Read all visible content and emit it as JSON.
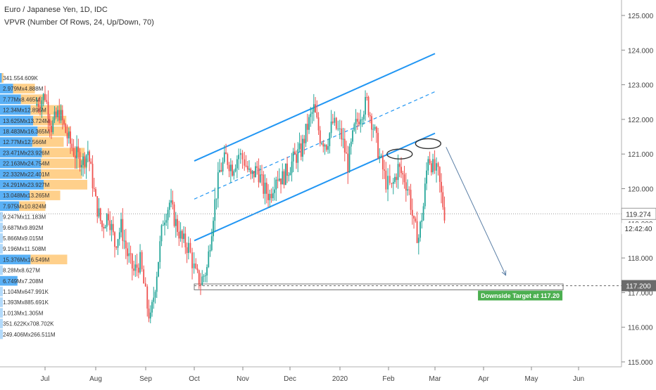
{
  "header": {
    "title": "Euro / Japanese Yen, 1D, IDC",
    "indicator": "VPVR (Number Of Rows, 24, Up/Down, 70)"
  },
  "colors": {
    "up": "#26a69a",
    "down": "#ef5350",
    "channel": "#2196f3",
    "vp_up": "#2196f3",
    "vp_down": "#ffb74d",
    "price_tag": "#6b6b6b",
    "target_label": "#4caf50"
  },
  "chart_data": {
    "type": "candlestick",
    "symbol": "EURJPY",
    "timeframe": "1D",
    "x_labels": [
      "Jul",
      "Aug",
      "Sep",
      "Oct",
      "Nov",
      "Dec",
      "2020",
      "Feb",
      "Mar",
      "Apr",
      "May",
      "Jun"
    ],
    "y_ticks": [
      "125.000",
      "124.000",
      "123.000",
      "122.000",
      "121.000",
      "120.000",
      "119.000",
      "118.000",
      "117.000",
      "116.000",
      "115.000"
    ],
    "ylim": [
      114.9,
      125.2
    ],
    "last_price": "119.274",
    "countdown": "12:42:40",
    "target_price": "117.200",
    "target_label": "Downside Target at 117.20",
    "volume_profile": [
      {
        "label": "341.554.609K",
        "price": 123.2,
        "up": 0.02,
        "down": 0.02
      },
      {
        "label": "2.979Mx4.888M",
        "price": 122.9,
        "up": 0.15,
        "down": 0.25
      },
      {
        "label": "7.77Mx8.465M",
        "price": 122.6,
        "up": 0.24,
        "down": 0.27
      },
      {
        "label": "12.34Mx12.896M",
        "price": 122.3,
        "up": 0.35,
        "down": 0.36
      },
      {
        "label": "13.625Mx13.724M",
        "price": 122.0,
        "up": 0.38,
        "down": 0.38
      },
      {
        "label": "18.483Mx16.365M",
        "price": 121.7,
        "up": 0.43,
        "down": 0.38
      },
      {
        "label": "12.77Mx12.566M",
        "price": 121.4,
        "up": 0.37,
        "down": 0.36
      },
      {
        "label": "23.471Mx23.926M",
        "price": 121.1,
        "up": 0.48,
        "down": 0.49
      },
      {
        "label": "22.163Mx24.754M",
        "price": 120.8,
        "up": 0.47,
        "down": 0.53
      },
      {
        "label": "22.332Mx22.401M",
        "price": 120.5,
        "up": 0.47,
        "down": 0.47
      },
      {
        "label": "24.291Mx23.927M",
        "price": 120.2,
        "up": 0.5,
        "down": 0.5
      },
      {
        "label": "13.048Mx13.265M",
        "price": 119.9,
        "up": 0.34,
        "down": 0.35
      },
      {
        "label": "7.975Mx10.824M",
        "price": 119.6,
        "up": 0.22,
        "down": 0.3
      },
      {
        "label": "9.247Mx11.183M",
        "price": 119.3,
        "up": 0.0,
        "down": 0.0
      },
      {
        "label": "9.687Mx9.892M",
        "price": 119.0,
        "up": 0.0,
        "down": 0.0
      },
      {
        "label": "5.866Mx9.015M",
        "price": 118.7,
        "up": 0.0,
        "down": 0.0
      },
      {
        "label": "9.196Mx11.508M",
        "price": 118.4,
        "up": 0.0,
        "down": 0.0
      },
      {
        "label": "15.376Mx16.549M",
        "price": 118.1,
        "up": 0.35,
        "down": 0.42
      },
      {
        "label": "8.28Mx8.627M",
        "price": 117.8,
        "up": 0.0,
        "down": 0.0
      },
      {
        "label": "6.749Mx7.208M",
        "price": 117.5,
        "up": 0.2,
        "down": 0.0
      },
      {
        "label": "1.104Mx647.991K",
        "price": 117.2,
        "up": 0.0,
        "down": 0.0
      },
      {
        "label": "1.393Mx885.691K",
        "price": 116.9,
        "up": 0.0,
        "down": 0.0
      },
      {
        "label": "1.013Mx1.305M",
        "price": 116.6,
        "up": 0.0,
        "down": 0.0
      },
      {
        "label": "351.622Kx708.702K",
        "price": 116.3,
        "up": 0.0,
        "down": 0.0
      },
      {
        "label": "249.406Mx266.511M",
        "price": 116.0,
        "up": 0.0,
        "down": 0.0
      }
    ],
    "price_path": [
      {
        "x": "Jun 25",
        "y": 122.4
      },
      {
        "x": "Jul 1",
        "y": 122.7
      },
      {
        "x": "Jul 5",
        "y": 121.8
      },
      {
        "x": "Jul 10",
        "y": 122.2
      },
      {
        "x": "Jul 15",
        "y": 121.5
      },
      {
        "x": "Jul 20",
        "y": 121.0
      },
      {
        "x": "Jul 25",
        "y": 120.8
      },
      {
        "x": "Jul 28",
        "y": 121.1
      },
      {
        "x": "Aug 1",
        "y": 119.6
      },
      {
        "x": "Aug 5",
        "y": 118.9
      },
      {
        "x": "Aug 9",
        "y": 119.3
      },
      {
        "x": "Aug 13",
        "y": 118.4
      },
      {
        "x": "Aug 17",
        "y": 118.9
      },
      {
        "x": "Aug 21",
        "y": 118.1
      },
      {
        "x": "Aug 25",
        "y": 117.6
      },
      {
        "x": "Aug 29",
        "y": 117.9
      },
      {
        "x": "Sep 2",
        "y": 116.6
      },
      {
        "x": "Sep 4",
        "y": 116.2
      },
      {
        "x": "Sep 8",
        "y": 117.6
      },
      {
        "x": "Sep 12",
        "y": 119.1
      },
      {
        "x": "Sep 16",
        "y": 119.6
      },
      {
        "x": "Sep 20",
        "y": 119.0
      },
      {
        "x": "Sep 24",
        "y": 118.5
      },
      {
        "x": "Sep 28",
        "y": 118.3
      },
      {
        "x": "Oct 2",
        "y": 117.5
      },
      {
        "x": "Oct 5",
        "y": 117.3
      },
      {
        "x": "Oct 9",
        "y": 117.7
      },
      {
        "x": "Oct 13",
        "y": 119.3
      },
      {
        "x": "Oct 17",
        "y": 120.5
      },
      {
        "x": "Oct 21",
        "y": 120.9
      },
      {
        "x": "Oct 25",
        "y": 120.6
      },
      {
        "x": "Oct 29",
        "y": 121.0
      },
      {
        "x": "Nov 2",
        "y": 120.8
      },
      {
        "x": "Nov 6",
        "y": 120.3
      },
      {
        "x": "Nov 10",
        "y": 120.6
      },
      {
        "x": "Nov 14",
        "y": 120.0
      },
      {
        "x": "Nov 18",
        "y": 119.8
      },
      {
        "x": "Nov 22",
        "y": 120.4
      },
      {
        "x": "Nov 26",
        "y": 120.3
      },
      {
        "x": "Nov 30",
        "y": 120.6
      },
      {
        "x": "Dec 4",
        "y": 120.9
      },
      {
        "x": "Dec 8",
        "y": 121.1
      },
      {
        "x": "Dec 12",
        "y": 121.8
      },
      {
        "x": "Dec 16",
        "y": 122.3
      },
      {
        "x": "Dec 20",
        "y": 121.5
      },
      {
        "x": "Dec 24",
        "y": 121.3
      },
      {
        "x": "Dec 28",
        "y": 121.9
      },
      {
        "x": "Jan 2",
        "y": 121.5
      },
      {
        "x": "Jan 6",
        "y": 120.7
      },
      {
        "x": "Jan 10",
        "y": 121.7
      },
      {
        "x": "Jan 14",
        "y": 122.2
      },
      {
        "x": "Jan 18",
        "y": 122.5
      },
      {
        "x": "Jan 22",
        "y": 121.8
      },
      {
        "x": "Jan 26",
        "y": 120.9
      },
      {
        "x": "Jan 30",
        "y": 120.2
      },
      {
        "x": "Feb 3",
        "y": 120.0
      },
      {
        "x": "Feb 7",
        "y": 120.6
      },
      {
        "x": "Feb 11",
        "y": 120.3
      },
      {
        "x": "Feb 14",
        "y": 119.9
      },
      {
        "x": "Feb 17",
        "y": 118.9
      },
      {
        "x": "Feb 20",
        "y": 118.6
      },
      {
        "x": "Feb 23",
        "y": 119.5
      },
      {
        "x": "Feb 26",
        "y": 121.0
      },
      {
        "x": "Feb 29",
        "y": 120.6
      },
      {
        "x": "Mar 3",
        "y": 120.4
      },
      {
        "x": "Mar 5",
        "y": 119.8
      },
      {
        "x": "Mar 7",
        "y": 119.3
      }
    ],
    "annotations": {
      "channel_upper": [
        {
          "x": "Oct 1",
          "y": 120.8
        },
        {
          "x": "Mar 1",
          "y": 123.9
        }
      ],
      "channel_lower": [
        {
          "x": "Oct 1",
          "y": 118.5
        },
        {
          "x": "Mar 1",
          "y": 121.6
        }
      ],
      "channel_mid": [
        {
          "x": "Oct 1",
          "y": 119.7
        },
        {
          "x": "Mar 1",
          "y": 122.8
        }
      ],
      "target_zone": [
        {
          "x": "Oct 1",
          "y": 117.25
        },
        {
          "x": "May 21",
          "y": 117.1
        }
      ],
      "arrow": [
        {
          "x": "Mar 8",
          "y": 121.2
        },
        {
          "x": "Apr 15",
          "y": 117.5
        }
      ],
      "ellipses": [
        {
          "x": "Feb 8",
          "y": 121.0
        },
        {
          "x": "Feb 26",
          "y": 121.3
        }
      ]
    }
  }
}
